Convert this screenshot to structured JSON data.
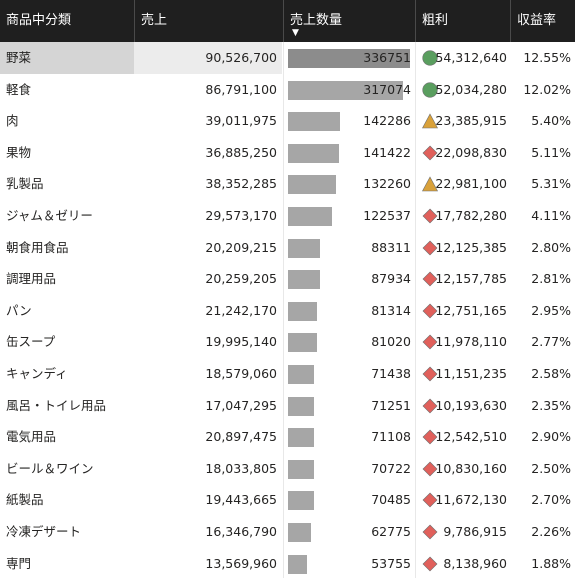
{
  "table": {
    "headers": {
      "category": "商品中分類",
      "sales": "売上",
      "quantity": "売上数量",
      "profit": "粗利",
      "margin": "収益率"
    },
    "sort_column": "quantity",
    "sort_direction": "descending",
    "selected_row": 0,
    "kpi_colors": {
      "green": "#5a9e5f",
      "amber": "#d9a13a",
      "red": "#e0605b"
    },
    "rows": [
      {
        "category": "野菜",
        "sales": "90,526,700",
        "quantity": "336751",
        "quantity_value": 336751,
        "profit": "54,312,640",
        "margin": "12.55%",
        "status": "green-circle-icon"
      },
      {
        "category": "軽食",
        "sales": "86,791,100",
        "quantity": "317074",
        "quantity_value": 317074,
        "profit": "52,034,280",
        "margin": "12.02%",
        "status": "green-circle-icon"
      },
      {
        "category": "肉",
        "sales": "39,011,975",
        "quantity": "142286",
        "quantity_value": 142286,
        "profit": "23,385,915",
        "margin": "5.40%",
        "status": "amber-triangle-icon"
      },
      {
        "category": "果物",
        "sales": "36,885,250",
        "quantity": "141422",
        "quantity_value": 141422,
        "profit": "22,098,830",
        "margin": "5.11%",
        "status": "red-diamond-icon"
      },
      {
        "category": "乳製品",
        "sales": "38,352,285",
        "quantity": "132260",
        "quantity_value": 132260,
        "profit": "22,981,100",
        "margin": "5.31%",
        "status": "amber-triangle-icon"
      },
      {
        "category": "ジャム＆ゼリー",
        "sales": "29,573,170",
        "quantity": "122537",
        "quantity_value": 122537,
        "profit": "17,782,280",
        "margin": "4.11%",
        "status": "red-diamond-icon"
      },
      {
        "category": "朝食用食品",
        "sales": "20,209,215",
        "quantity": "88311",
        "quantity_value": 88311,
        "profit": "12,125,385",
        "margin": "2.80%",
        "status": "red-diamond-icon"
      },
      {
        "category": "調理用品",
        "sales": "20,259,205",
        "quantity": "87934",
        "quantity_value": 87934,
        "profit": "12,157,785",
        "margin": "2.81%",
        "status": "red-diamond-icon"
      },
      {
        "category": "パン",
        "sales": "21,242,170",
        "quantity": "81314",
        "quantity_value": 81314,
        "profit": "12,751,165",
        "margin": "2.95%",
        "status": "red-diamond-icon"
      },
      {
        "category": "缶スープ",
        "sales": "19,995,140",
        "quantity": "81020",
        "quantity_value": 81020,
        "profit": "11,978,110",
        "margin": "2.77%",
        "status": "red-diamond-icon"
      },
      {
        "category": "キャンディ",
        "sales": "18,579,060",
        "quantity": "71438",
        "quantity_value": 71438,
        "profit": "11,151,235",
        "margin": "2.58%",
        "status": "red-diamond-icon"
      },
      {
        "category": "風呂・トイレ用品",
        "sales": "17,047,295",
        "quantity": "71251",
        "quantity_value": 71251,
        "profit": "10,193,630",
        "margin": "2.35%",
        "status": "red-diamond-icon"
      },
      {
        "category": "電気用品",
        "sales": "20,897,475",
        "quantity": "71108",
        "quantity_value": 71108,
        "profit": "12,542,510",
        "margin": "2.90%",
        "status": "red-diamond-icon"
      },
      {
        "category": "ビール＆ワイン",
        "sales": "18,033,805",
        "quantity": "70722",
        "quantity_value": 70722,
        "profit": "10,830,160",
        "margin": "2.50%",
        "status": "red-diamond-icon"
      },
      {
        "category": "紙製品",
        "sales": "19,443,665",
        "quantity": "70485",
        "quantity_value": 70485,
        "profit": "11,672,130",
        "margin": "2.70%",
        "status": "red-diamond-icon"
      },
      {
        "category": "冷凍デザート",
        "sales": "16,346,790",
        "quantity": "62775",
        "quantity_value": 62775,
        "profit": "9,786,915",
        "margin": "2.26%",
        "status": "red-diamond-icon"
      },
      {
        "category": "専門",
        "sales": "13,569,960",
        "quantity": "53755",
        "quantity_value": 53755,
        "profit": "8,138,960",
        "margin": "1.88%",
        "status": "red-diamond-icon"
      }
    ]
  }
}
